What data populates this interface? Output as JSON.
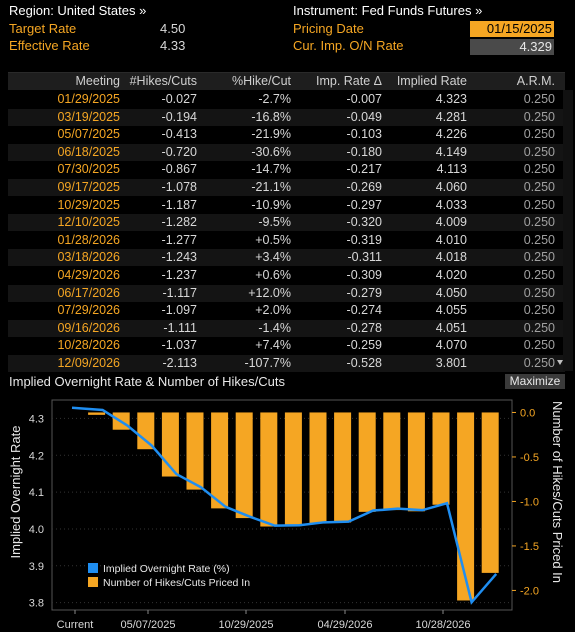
{
  "header": {
    "region_label": "Region: United States »",
    "target_rate_label": "Target Rate",
    "target_rate_value": "4.50",
    "effective_rate_label": "Effective Rate",
    "effective_rate_value": "4.33",
    "instrument_label": "Instrument: Fed Funds Futures »",
    "pricing_date_label": "Pricing Date",
    "pricing_date_value": "01/15/2025",
    "cur_imp_label": "Cur. Imp. O/N Rate",
    "cur_imp_value": "4.329"
  },
  "table": {
    "columns": [
      "Meeting",
      "#Hikes/Cuts",
      "%Hike/Cut",
      "Imp. Rate Δ",
      "Implied Rate",
      "A.R.M."
    ],
    "rows": [
      [
        "01/29/2025",
        "-0.027",
        "-2.7%",
        "-0.007",
        "4.323",
        "0.250"
      ],
      [
        "03/19/2025",
        "-0.194",
        "-16.8%",
        "-0.049",
        "4.281",
        "0.250"
      ],
      [
        "05/07/2025",
        "-0.413",
        "-21.9%",
        "-0.103",
        "4.226",
        "0.250"
      ],
      [
        "06/18/2025",
        "-0.720",
        "-30.6%",
        "-0.180",
        "4.149",
        "0.250"
      ],
      [
        "07/30/2025",
        "-0.867",
        "-14.7%",
        "-0.217",
        "4.113",
        "0.250"
      ],
      [
        "09/17/2025",
        "-1.078",
        "-21.1%",
        "-0.269",
        "4.060",
        "0.250"
      ],
      [
        "10/29/2025",
        "-1.187",
        "-10.9%",
        "-0.297",
        "4.033",
        "0.250"
      ],
      [
        "12/10/2025",
        "-1.282",
        "-9.5%",
        "-0.320",
        "4.009",
        "0.250"
      ],
      [
        "01/28/2026",
        "-1.277",
        "+0.5%",
        "-0.319",
        "4.010",
        "0.250"
      ],
      [
        "03/18/2026",
        "-1.243",
        "+3.4%",
        "-0.311",
        "4.018",
        "0.250"
      ],
      [
        "04/29/2026",
        "-1.237",
        "+0.6%",
        "-0.309",
        "4.020",
        "0.250"
      ],
      [
        "06/17/2026",
        "-1.117",
        "+12.0%",
        "-0.279",
        "4.050",
        "0.250"
      ],
      [
        "07/29/2026",
        "-1.097",
        "+2.0%",
        "-0.274",
        "4.055",
        "0.250"
      ],
      [
        "09/16/2026",
        "-1.111",
        "-1.4%",
        "-0.278",
        "4.051",
        "0.250"
      ],
      [
        "10/28/2026",
        "-1.037",
        "+7.4%",
        "-0.259",
        "4.070",
        "0.250"
      ],
      [
        "12/09/2026",
        "-2.113",
        "-107.7%",
        "-0.528",
        "3.801",
        "0.250"
      ]
    ]
  },
  "chart_title": "Implied Overnight Rate & Number of Hikes/Cuts",
  "maximize_label": "Maximize",
  "colors": {
    "accent": "#f5a623",
    "line": "#1f8ef1"
  },
  "chart_data": {
    "type": "bar",
    "title": "Implied Overnight Rate & Number of Hikes/Cuts",
    "ylabel_left": "Implied Overnight Rate",
    "ylabel_right": "Number of Hikes/Cuts Priced In",
    "x_tick_labels": [
      "Current",
      "05/07/2025",
      "10/29/2025",
      "04/29/2026",
      "10/28/2026"
    ],
    "y_left_ticks": [
      "4.3",
      "4.2",
      "4.1",
      "4.0",
      "3.9",
      "3.8"
    ],
    "y_right_ticks": [
      "0.0",
      "-0.5",
      "-1.0",
      "-1.5",
      "-2.0"
    ],
    "y_left_range": [
      3.78,
      4.35
    ],
    "y_right_range": [
      -2.22,
      0.14
    ],
    "legend_position": "bottom-left",
    "series": [
      {
        "name": "Number of Hikes/Cuts Priced In",
        "kind": "bar",
        "color": "#f5a623",
        "values": [
          -0.027,
          -0.194,
          -0.413,
          -0.72,
          -0.867,
          -1.078,
          -1.187,
          -1.282,
          -1.277,
          -1.243,
          -1.237,
          -1.117,
          -1.097,
          -1.111,
          -1.037,
          -2.113,
          -1.803
        ]
      },
      {
        "name": "Implied Overnight Rate (%)",
        "kind": "line",
        "color": "#1f8ef1",
        "values": [
          4.329,
          4.323,
          4.281,
          4.226,
          4.149,
          4.113,
          4.06,
          4.033,
          4.009,
          4.01,
          4.018,
          4.02,
          4.05,
          4.055,
          4.051,
          4.07,
          3.801,
          3.878
        ]
      }
    ]
  }
}
